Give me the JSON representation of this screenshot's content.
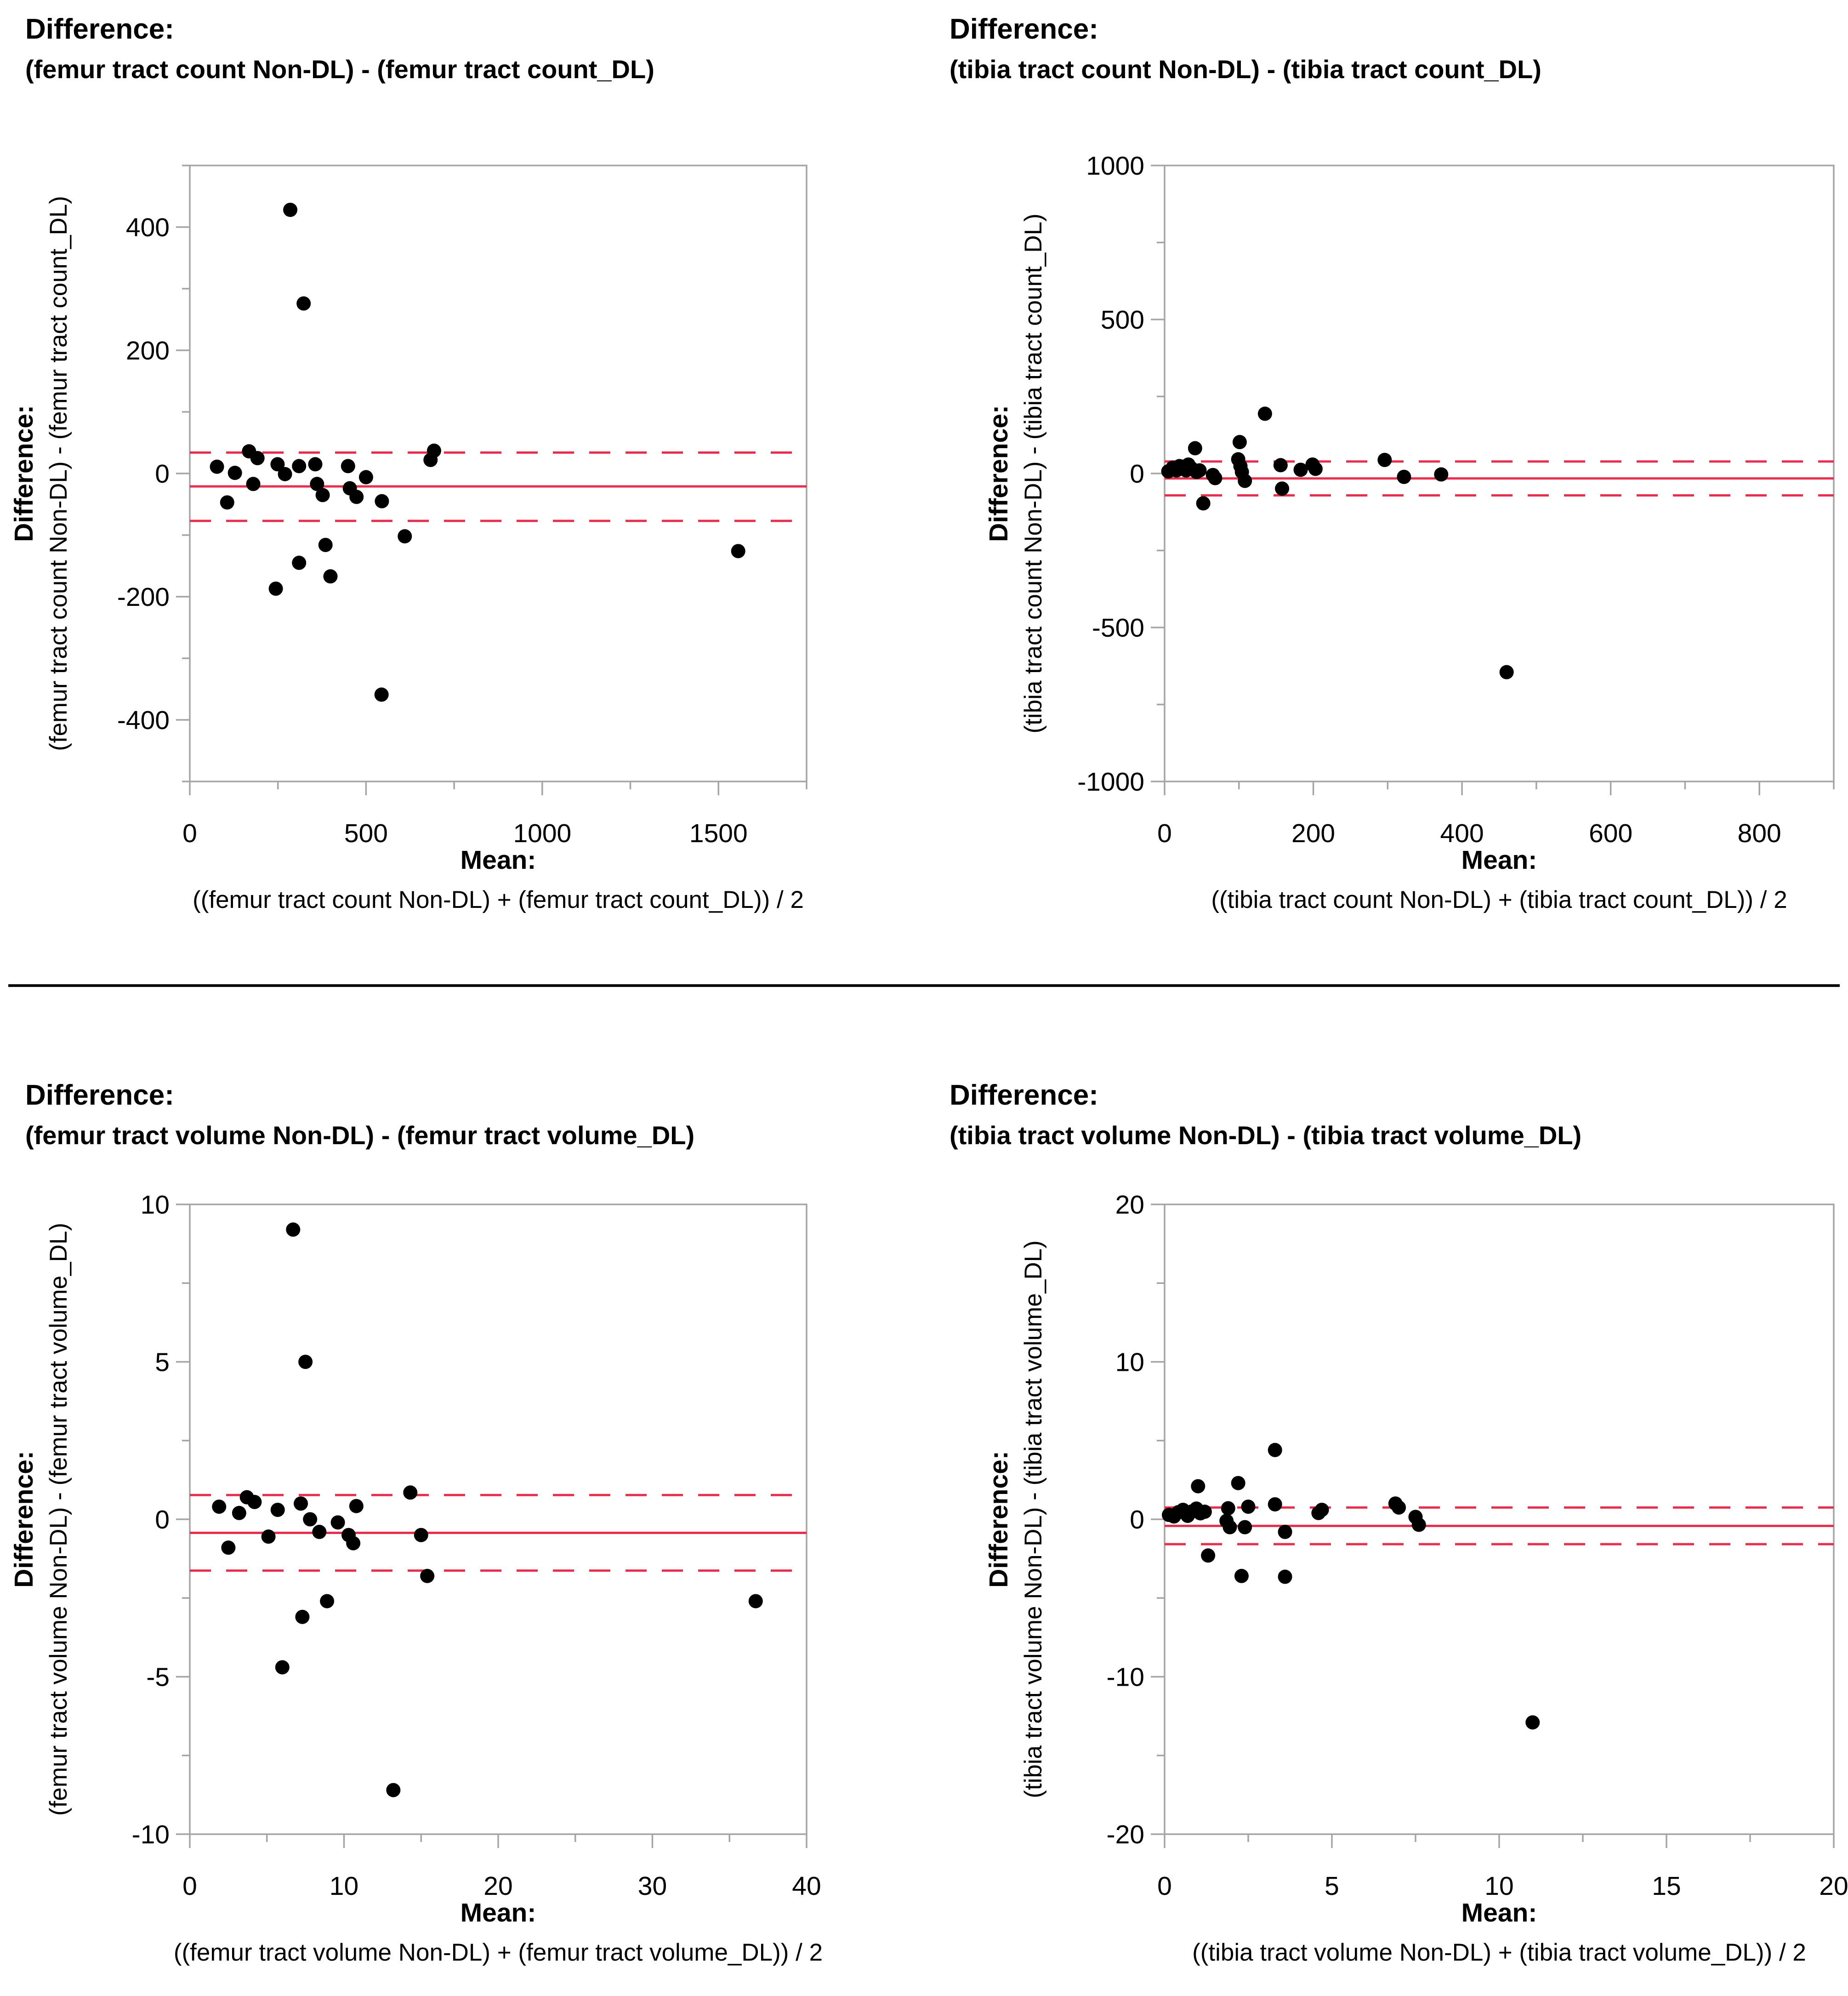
{
  "page": {
    "background": "#ffffff",
    "divider": "horizontal-rule"
  },
  "colors": {
    "point": "#000000",
    "mean_line": "#e62e4d",
    "loa_line": "#e62e4d",
    "axis": "#a5a5a5",
    "text": "#000000"
  },
  "chart_data": [
    {
      "type": "scatter",
      "title_line1": "Difference:",
      "title_line2": "(femur tract count Non-DL) - (femur tract count_DL)",
      "y_axis": {
        "label_bold": "Difference:",
        "label_formula": "(femur tract count Non-DL) - (femur tract count_DL)",
        "lim": [
          -500,
          500
        ],
        "major_values": [
          -400,
          -200,
          0,
          200,
          400
        ],
        "major_labels": [
          "-400",
          "-200",
          "0",
          "200",
          "400"
        ],
        "minor_values": [
          -500,
          -300,
          -100,
          100,
          300,
          500
        ]
      },
      "x_axis": {
        "label_bold": "Mean:",
        "label_formula": "((femur tract count Non-DL) + (femur tract count_DL)) / 2",
        "lim": [
          0,
          1750
        ],
        "major_values": [
          0,
          500,
          1000,
          1500
        ],
        "major_labels": [
          "0",
          "500",
          "1000",
          "1500"
        ],
        "minor_values": [
          250,
          750,
          1250,
          1750
        ]
      },
      "lines": {
        "mean": -21,
        "upper_loa": 34,
        "lower_loa": -77
      },
      "points": [
        [
          285,
          428
        ],
        [
          323,
          276
        ],
        [
          77,
          11
        ],
        [
          128,
          1
        ],
        [
          168,
          36
        ],
        [
          192,
          25
        ],
        [
          180,
          -17
        ],
        [
          106,
          -47
        ],
        [
          249,
          15
        ],
        [
          270,
          -1
        ],
        [
          310,
          12
        ],
        [
          356,
          15
        ],
        [
          361,
          -17
        ],
        [
          377,
          -35
        ],
        [
          449,
          12
        ],
        [
          454,
          -24
        ],
        [
          473,
          -38
        ],
        [
          500,
          -6
        ],
        [
          545,
          -45
        ],
        [
          693,
          37
        ],
        [
          683,
          22
        ],
        [
          610,
          -102
        ],
        [
          385,
          -116
        ],
        [
          310,
          -145
        ],
        [
          399,
          -167
        ],
        [
          244,
          -187
        ],
        [
          544,
          -359
        ],
        [
          1556,
          -126
        ]
      ]
    },
    {
      "type": "scatter",
      "title_line1": "Difference:",
      "title_line2": "(tibia tract count Non-DL) - (tibia tract count_DL)",
      "y_axis": {
        "label_bold": "Difference:",
        "label_formula": "(tibia tract count Non-DL) - (tibia tract count_DL)",
        "lim": [
          -1000,
          1000
        ],
        "major_values": [
          -1000,
          -500,
          0,
          500,
          1000
        ],
        "major_labels": [
          "-1000",
          "-500",
          "0",
          "500",
          "1000"
        ],
        "minor_values": [
          -750,
          -250,
          250,
          750
        ]
      },
      "x_axis": {
        "label_bold": "Mean:",
        "label_formula": "((tibia tract count Non-DL) + (tibia tract count_DL)) / 2",
        "lim": [
          0,
          900
        ],
        "major_values": [
          0,
          200,
          400,
          600,
          800
        ],
        "major_labels": [
          "0",
          "200",
          "400",
          "600",
          "800"
        ],
        "minor_values": [
          100,
          300,
          500,
          700,
          900
        ]
      },
      "lines": {
        "mean": -16,
        "upper_loa": 39,
        "lower_loa": -71
      },
      "points": [
        [
          5,
          7
        ],
        [
          11,
          19
        ],
        [
          16,
          10
        ],
        [
          20,
          24
        ],
        [
          25,
          22
        ],
        [
          29,
          10
        ],
        [
          32,
          29
        ],
        [
          36,
          17
        ],
        [
          41,
          82
        ],
        [
          43,
          5
        ],
        [
          47,
          10
        ],
        [
          52,
          -97
        ],
        [
          65,
          -5
        ],
        [
          68,
          -15
        ],
        [
          99,
          46
        ],
        [
          101,
          102
        ],
        [
          102,
          24
        ],
        [
          104,
          5
        ],
        [
          108,
          -24
        ],
        [
          135,
          194
        ],
        [
          156,
          27
        ],
        [
          158,
          -49
        ],
        [
          183,
          12
        ],
        [
          199,
          29
        ],
        [
          203,
          15
        ],
        [
          296,
          44
        ],
        [
          322,
          -11
        ],
        [
          372,
          -3
        ],
        [
          460,
          -645
        ]
      ]
    },
    {
      "type": "scatter",
      "title_line1": "Difference:",
      "title_line2": "(femur tract volume Non-DL) - (femur tract volume_DL)",
      "y_axis": {
        "label_bold": "Difference:",
        "label_formula": "(femur tract volume Non-DL) - (femur tract volume_DL)",
        "lim": [
          -10,
          10
        ],
        "major_values": [
          -10,
          -5,
          0,
          5,
          10
        ],
        "major_labels": [
          "-10",
          "-5",
          "0",
          "5",
          "10"
        ],
        "minor_values": [
          -7.5,
          -2.5,
          2.5,
          7.5
        ]
      },
      "x_axis": {
        "label_bold": "Mean:",
        "label_formula": "((femur tract volume Non-DL) + (femur tract volume_DL)) / 2",
        "lim": [
          0,
          40
        ],
        "major_values": [
          0,
          10,
          20,
          30,
          40
        ],
        "major_labels": [
          "0",
          "10",
          "20",
          "30",
          "40"
        ],
        "minor_values": [
          5,
          15,
          25,
          35
        ]
      },
      "lines": {
        "mean": -0.43,
        "upper_loa": 0.77,
        "lower_loa": -1.63
      },
      "points": [
        [
          1.9,
          0.4
        ],
        [
          2.5,
          -0.9
        ],
        [
          3.2,
          0.2
        ],
        [
          3.7,
          0.7
        ],
        [
          4.2,
          0.55
        ],
        [
          5.1,
          -0.55
        ],
        [
          5.7,
          0.3
        ],
        [
          6.0,
          -4.7
        ],
        [
          6.7,
          9.2
        ],
        [
          7.2,
          0.5
        ],
        [
          7.3,
          -3.1
        ],
        [
          7.5,
          5.0
        ],
        [
          7.8,
          0.0
        ],
        [
          8.4,
          -0.4
        ],
        [
          8.9,
          -2.6
        ],
        [
          9.6,
          -0.1
        ],
        [
          10.3,
          -0.5
        ],
        [
          10.6,
          -0.76
        ],
        [
          10.8,
          0.42
        ],
        [
          13.2,
          -8.6
        ],
        [
          14.3,
          0.85
        ],
        [
          15.0,
          -0.5
        ],
        [
          15.4,
          -1.8
        ],
        [
          36.7,
          -2.6
        ]
      ]
    },
    {
      "type": "scatter",
      "title_line1": "Difference:",
      "title_line2": "(tibia tract volume Non-DL) - (tibia tract volume_DL)",
      "y_axis": {
        "label_bold": "Difference:",
        "label_formula": "(tibia tract volume Non-DL) - (tibia tract volume_DL)",
        "lim": [
          -20,
          20
        ],
        "major_values": [
          -20,
          -10,
          0,
          10,
          20
        ],
        "major_labels": [
          "-20",
          "-10",
          "0",
          "10",
          "20"
        ],
        "minor_values": [
          -15,
          -5,
          5,
          15
        ]
      },
      "x_axis": {
        "label_bold": "Mean:",
        "label_formula": "((tibia tract volume Non-DL) + (tibia tract volume_DL)) / 2",
        "lim": [
          0,
          20
        ],
        "major_values": [
          0,
          5,
          10,
          15,
          20
        ],
        "major_labels": [
          "0",
          "5",
          "10",
          "15",
          "20"
        ],
        "minor_values": [
          2.5,
          7.5,
          12.5,
          17.5
        ]
      },
      "lines": {
        "mean": -0.42,
        "upper_loa": 0.75,
        "lower_loa": -1.58
      },
      "points": [
        [
          0.13,
          0.28
        ],
        [
          0.28,
          0.18
        ],
        [
          0.41,
          0.45
        ],
        [
          0.55,
          0.6
        ],
        [
          0.69,
          0.22
        ],
        [
          0.82,
          0.5
        ],
        [
          0.95,
          0.68
        ],
        [
          1.07,
          0.38
        ],
        [
          1.2,
          0.48
        ],
        [
          1.0,
          2.1
        ],
        [
          1.3,
          -2.3
        ],
        [
          1.9,
          0.7
        ],
        [
          1.85,
          -0.1
        ],
        [
          1.95,
          -0.5
        ],
        [
          2.2,
          2.3
        ],
        [
          2.3,
          -3.6
        ],
        [
          2.4,
          -0.5
        ],
        [
          2.5,
          0.8
        ],
        [
          3.3,
          0.95
        ],
        [
          3.3,
          4.4
        ],
        [
          3.6,
          -0.8
        ],
        [
          3.6,
          -3.65
        ],
        [
          4.6,
          0.4
        ],
        [
          4.7,
          0.6
        ],
        [
          6.9,
          1.0
        ],
        [
          7.0,
          0.75
        ],
        [
          7.5,
          0.15
        ],
        [
          7.6,
          -0.35
        ],
        [
          11.0,
          -12.9
        ]
      ]
    }
  ]
}
